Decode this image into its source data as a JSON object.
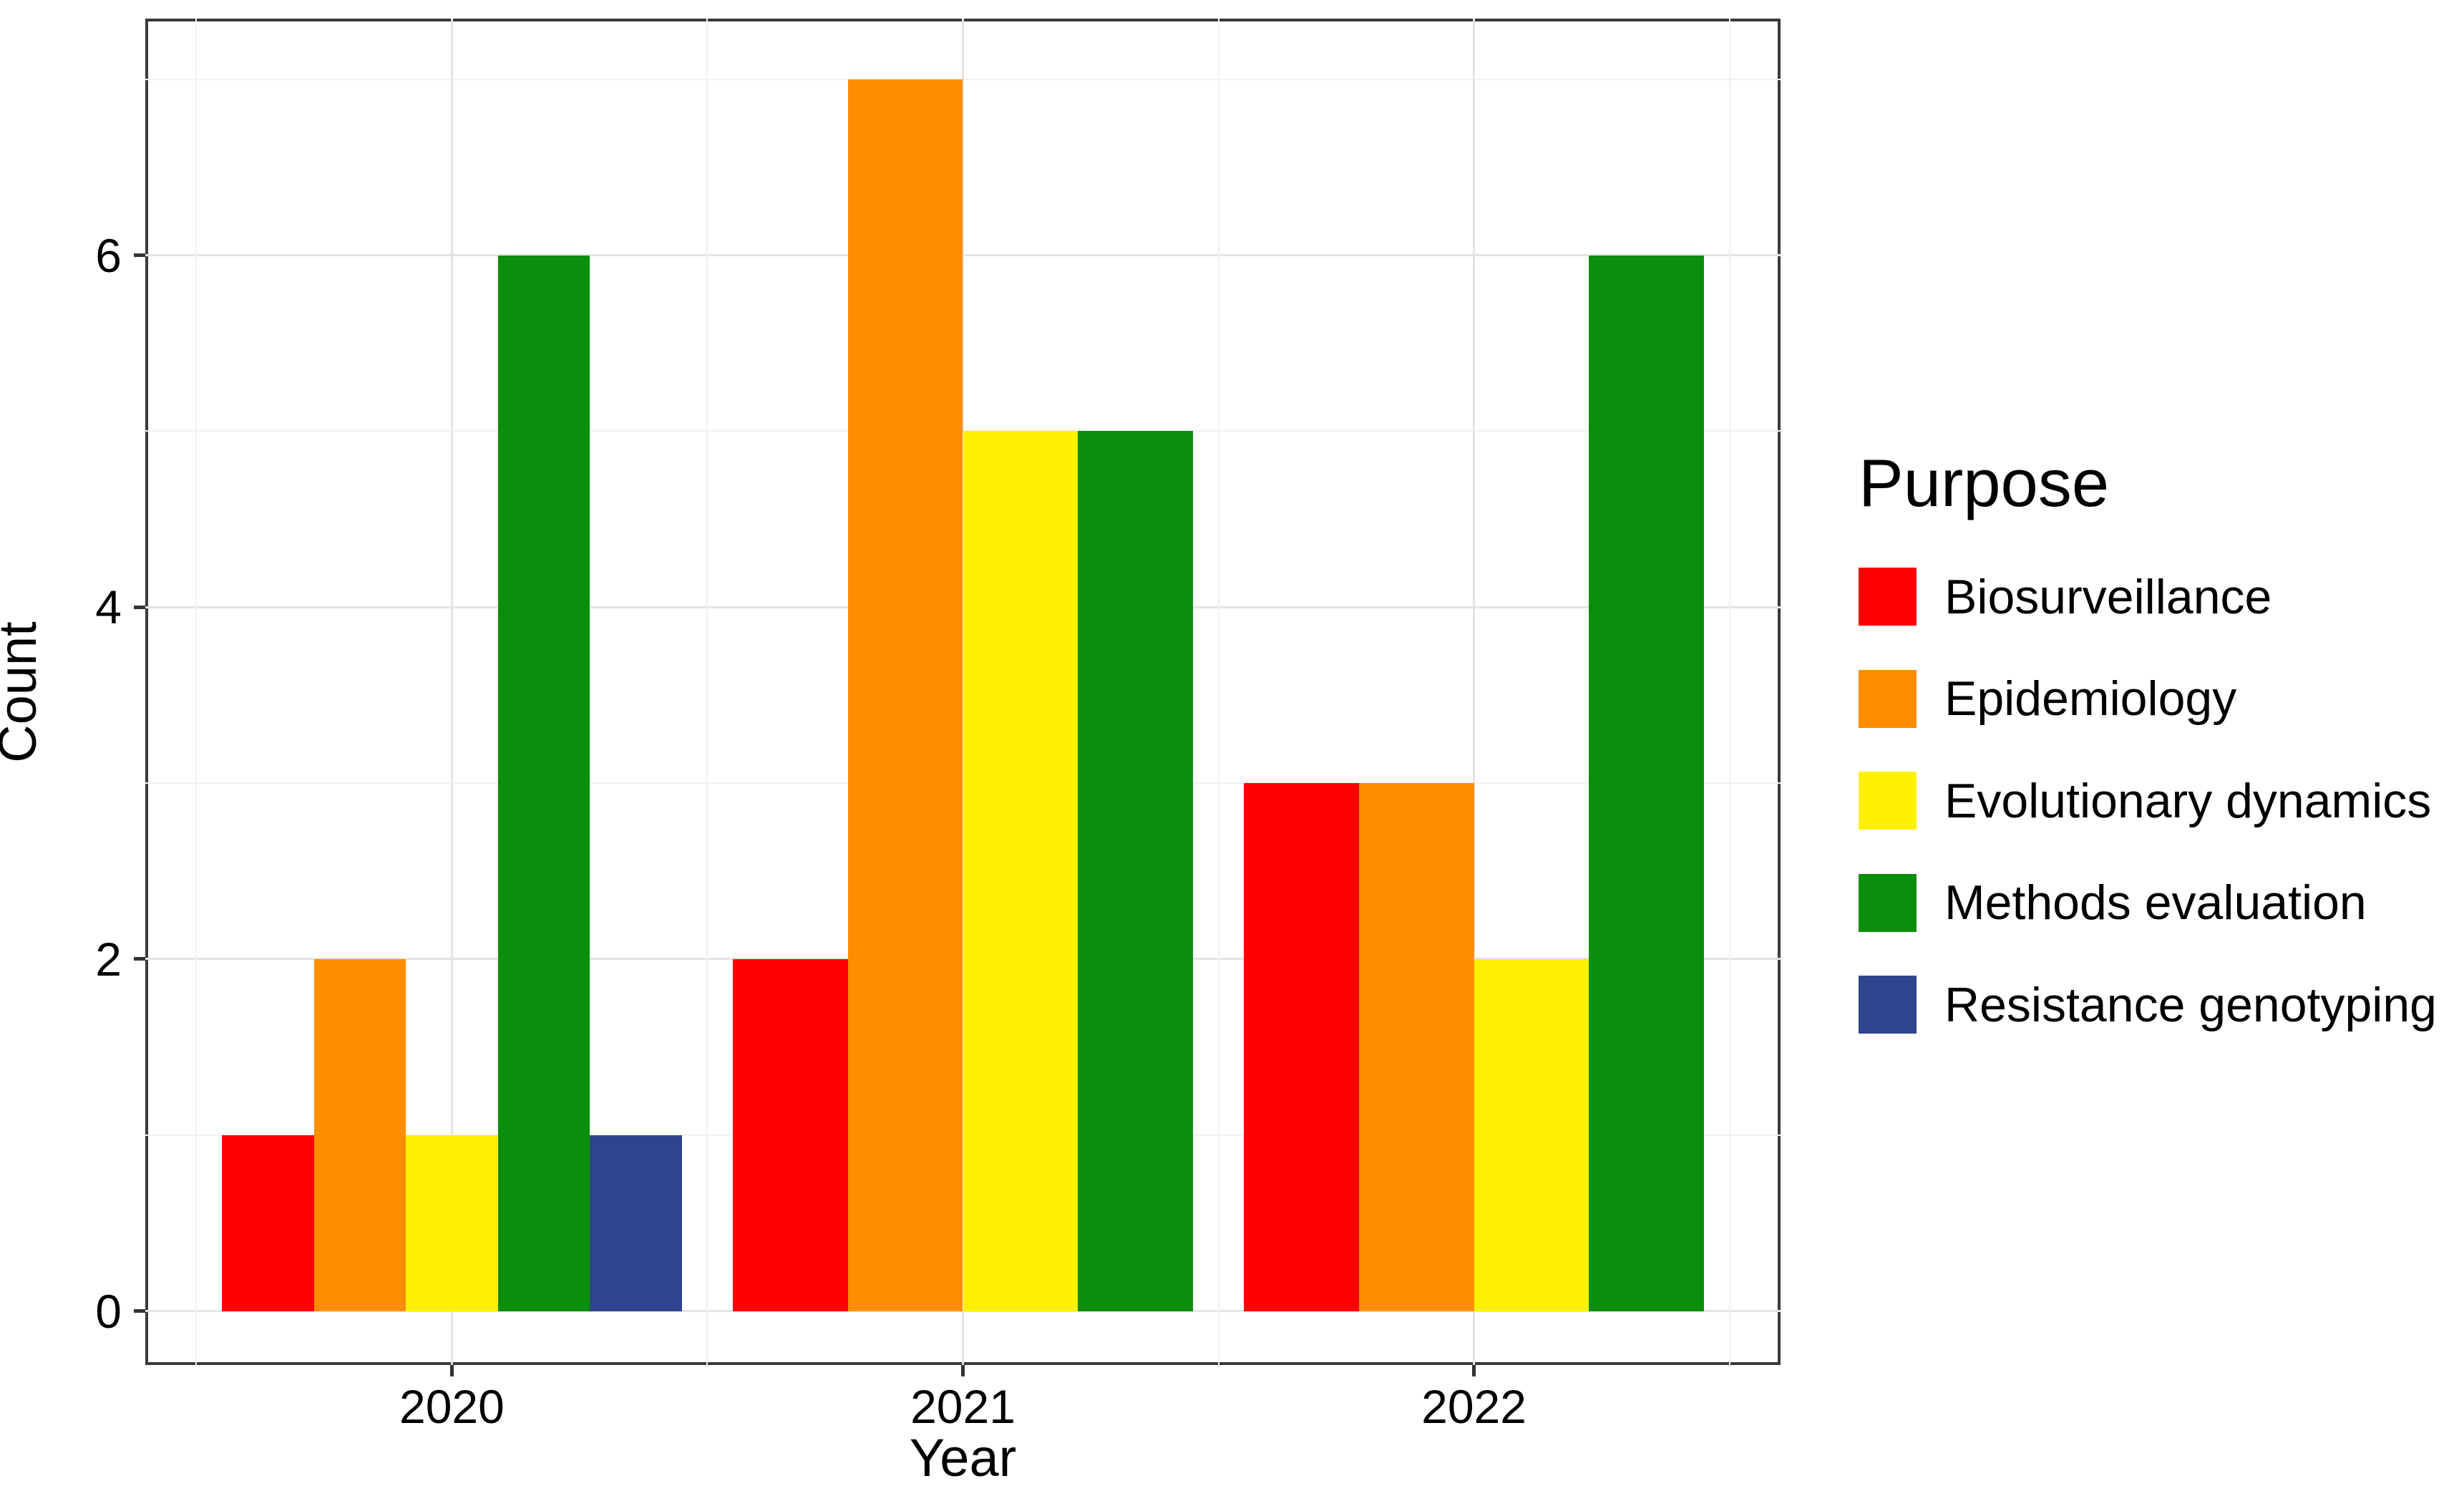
{
  "chart_data": {
    "type": "bar",
    "title": "",
    "xlabel": "Year",
    "ylabel": "Count",
    "categories": [
      "2020",
      "2021",
      "2022"
    ],
    "series": [
      {
        "name": "Biosurveillance",
        "color": "#ff0000",
        "values": [
          1,
          2,
          3
        ]
      },
      {
        "name": "Epidemiology",
        "color": "#ff8d00",
        "values": [
          2,
          7,
          3
        ]
      },
      {
        "name": "Evolutionary dynamics",
        "color": "#fff100",
        "values": [
          1,
          5,
          2
        ]
      },
      {
        "name": "Methods evaluation",
        "color": "#0b8e0b",
        "values": [
          6,
          5,
          6
        ]
      },
      {
        "name": "Resistance genotyping",
        "color": "#2e458d",
        "values": [
          1,
          null,
          null
        ]
      }
    ],
    "ylim": [
      0,
      7
    ],
    "y_major_ticks": [
      0,
      2,
      4,
      6
    ],
    "y_minor_gridlines": [
      1,
      3,
      5,
      7
    ],
    "grid": true,
    "legend_title": "Purpose",
    "legend_position": "right",
    "bar_mode": "dodge",
    "panel_border_color": "#3a3a3a",
    "major_grid_color": "#e4e4e4",
    "minor_grid_color": "#f1f1f1",
    "tick_color": "#333333",
    "text_color": "#000000"
  }
}
